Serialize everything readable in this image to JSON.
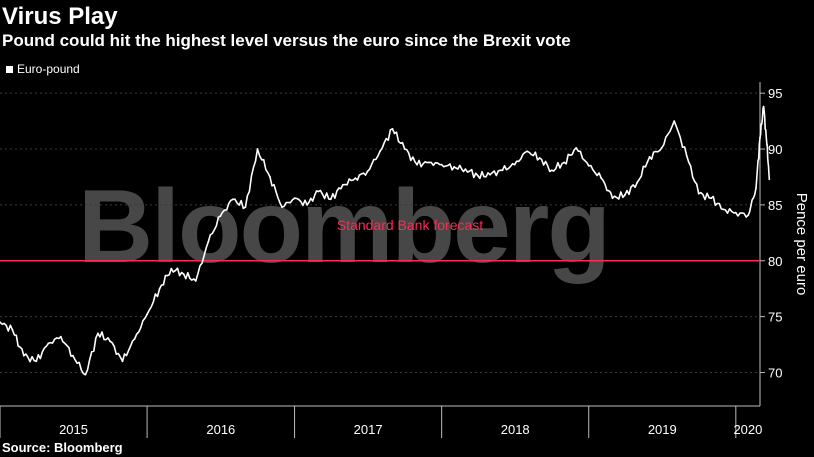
{
  "header": {
    "title": "Virus Play",
    "subtitle": "Pound could hit the highest level versus the euro since the Brexit vote"
  },
  "legend": {
    "label": "Euro-pound"
  },
  "source": "Source: Bloomberg",
  "watermark": "Bloomberg",
  "colors": {
    "background": "#000000",
    "series": "#ffffff",
    "reference": "#ff2a55",
    "grid": "#3a3a3a"
  },
  "chart_data": {
    "type": "line",
    "title": "Virus Play",
    "subtitle": "Pound could hit the highest level versus the euro since the Brexit vote",
    "xlabel": "",
    "ylabel": "Pence per euro",
    "ylim": [
      67,
      96
    ],
    "xlim": [
      "2015-01-01",
      "2020-03-01"
    ],
    "y_ticks": [
      70,
      75,
      80,
      85,
      90,
      95
    ],
    "x_tick_labels": [
      "2015",
      "2016",
      "2017",
      "2018",
      "2019",
      "2020"
    ],
    "grid": true,
    "legend_position": "top-left",
    "series": [
      {
        "name": "Euro-pound",
        "x": [
          "2015-01-01",
          "2015-02-01",
          "2015-03-01",
          "2015-04-01",
          "2015-05-01",
          "2015-06-01",
          "2015-07-01",
          "2015-08-01",
          "2015-09-01",
          "2015-10-01",
          "2015-11-01",
          "2015-12-01",
          "2016-01-01",
          "2016-02-01",
          "2016-03-01",
          "2016-04-01",
          "2016-05-01",
          "2016-06-01",
          "2016-07-01",
          "2016-08-01",
          "2016-09-01",
          "2016-10-01",
          "2016-11-01",
          "2016-12-01",
          "2017-01-01",
          "2017-02-01",
          "2017-03-01",
          "2017-04-01",
          "2017-05-01",
          "2017-06-01",
          "2017-07-01",
          "2017-08-01",
          "2017-09-01",
          "2017-10-01",
          "2017-11-01",
          "2017-12-01",
          "2018-01-01",
          "2018-02-01",
          "2018-03-01",
          "2018-04-01",
          "2018-05-01",
          "2018-06-01",
          "2018-07-01",
          "2018-08-01",
          "2018-09-01",
          "2018-10-01",
          "2018-11-01",
          "2018-12-01",
          "2019-01-01",
          "2019-02-01",
          "2019-03-01",
          "2019-04-01",
          "2019-05-01",
          "2019-06-01",
          "2019-07-01",
          "2019-08-01",
          "2019-09-01",
          "2019-10-01",
          "2019-11-01",
          "2019-12-01",
          "2020-01-01",
          "2020-02-01",
          "2020-02-20",
          "2020-03-01",
          "2020-03-10",
          "2020-03-18",
          "2020-03-24"
        ],
        "values": [
          74.5,
          73.8,
          71.5,
          71.0,
          72.6,
          73.2,
          71.5,
          69.8,
          73.5,
          72.8,
          71.0,
          73.0,
          75.2,
          77.5,
          79.3,
          78.8,
          78.2,
          81.7,
          84.0,
          85.5,
          84.8,
          90.0,
          87.5,
          84.8,
          85.6,
          85.0,
          86.2,
          85.5,
          86.8,
          87.4,
          88.0,
          89.8,
          91.8,
          90.0,
          88.6,
          88.8,
          88.6,
          88.4,
          88.2,
          87.6,
          87.7,
          88.1,
          88.6,
          89.8,
          89.2,
          88.1,
          88.8,
          90.1,
          88.5,
          87.4,
          85.6,
          85.9,
          87.0,
          89.3,
          90.1,
          92.5,
          89.4,
          86.0,
          85.6,
          84.6,
          84.3,
          84.1,
          86.5,
          91.0,
          93.8,
          90.4,
          87.3
        ]
      }
    ],
    "reference_lines": [
      {
        "y": 80,
        "label": "Standard Bank forecast"
      }
    ]
  }
}
